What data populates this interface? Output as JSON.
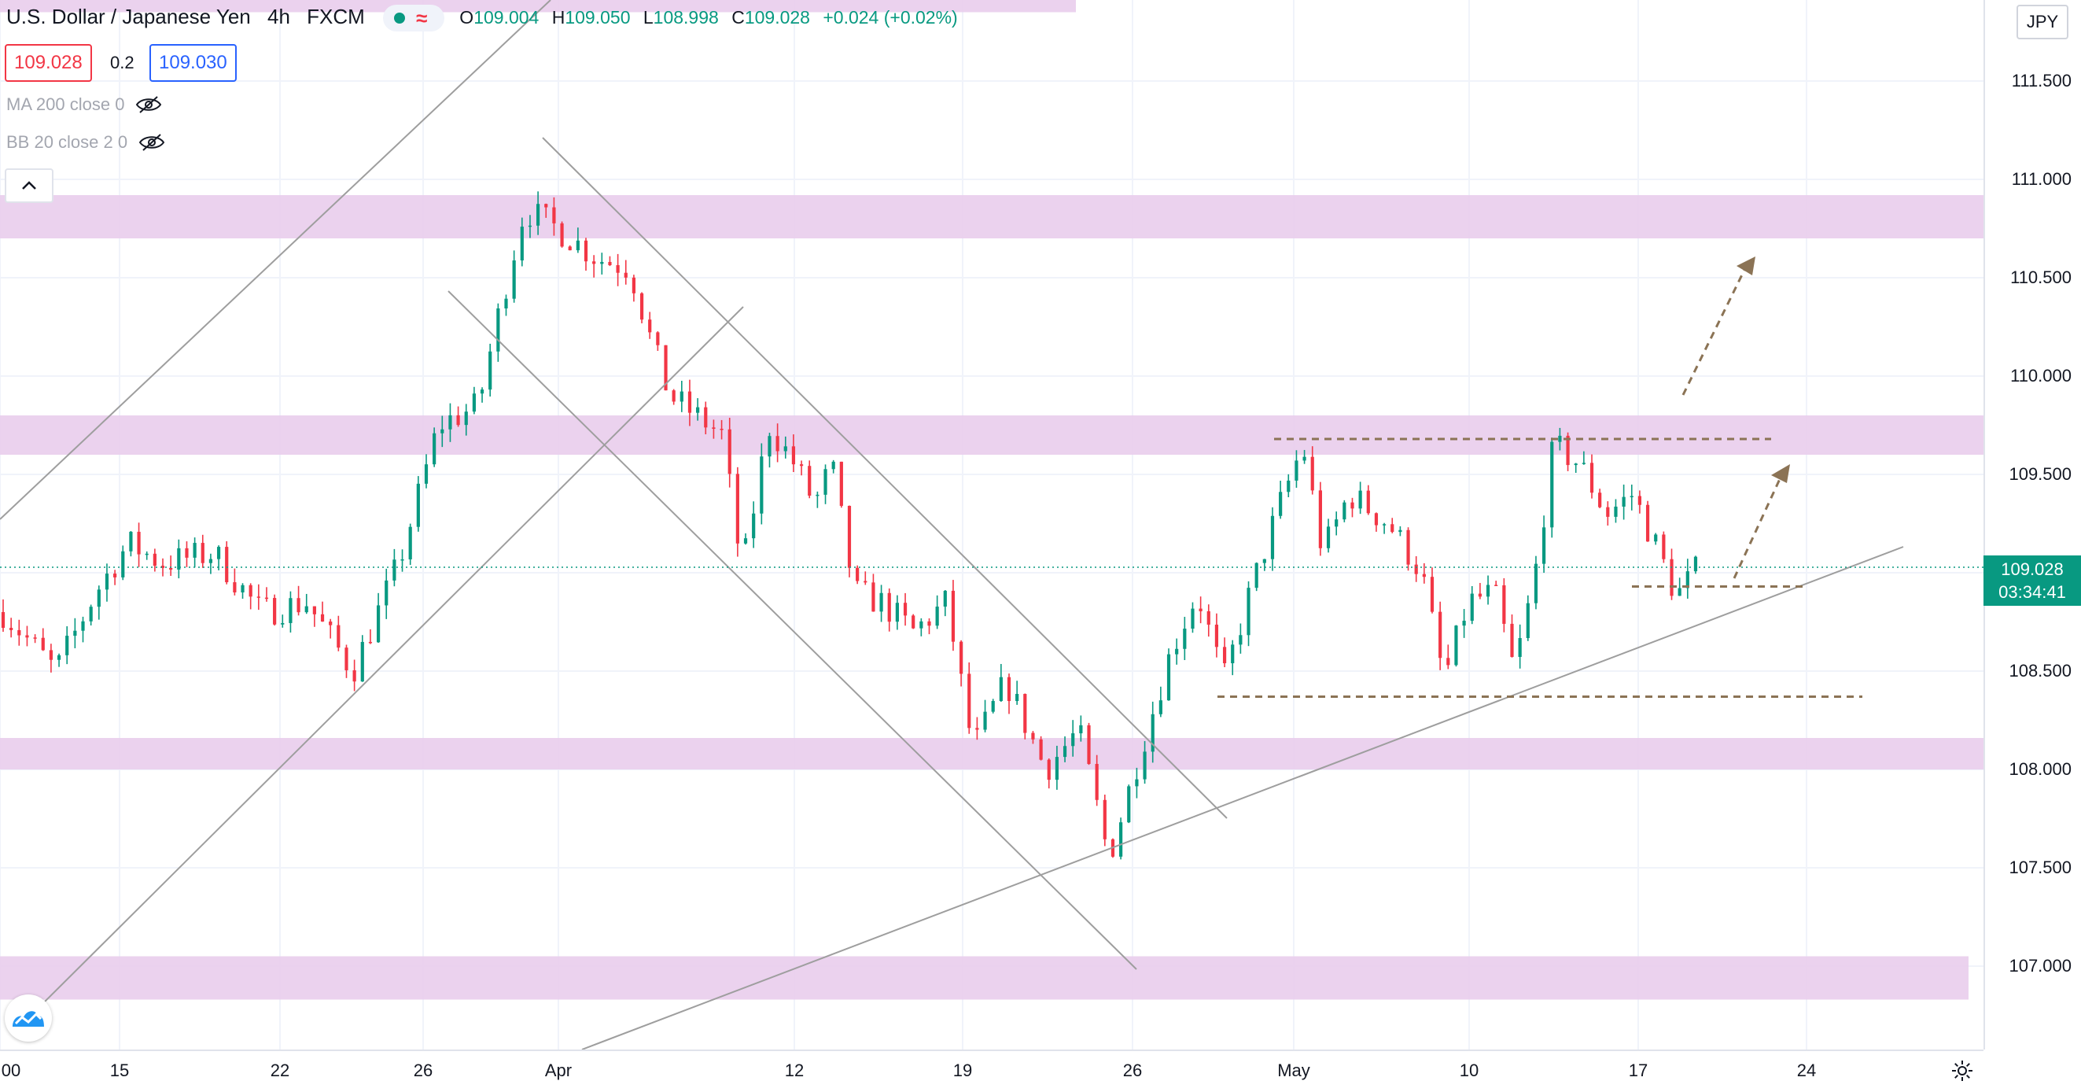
{
  "header": {
    "symbol_title": "U.S. Dollar / Japanese Yen",
    "interval": "4h",
    "exchange": "FXCM",
    "ohlc": {
      "open_label": "O",
      "open": "109.004",
      "high_label": "H",
      "high": "109.050",
      "low_label": "L",
      "low": "108.998",
      "close_label": "C",
      "close": "109.028",
      "change": "+0.024 (+0.02%)"
    },
    "bid": "109.028",
    "spread": "0.2",
    "ask": "109.030"
  },
  "indicators": [
    {
      "label": "MA 200 close 0",
      "icon": "eye-off-icon"
    },
    {
      "label": "BB 20 close 2 0",
      "icon": "eye-off-icon"
    }
  ],
  "currency": "JPY",
  "last_price": {
    "value": "109.028",
    "countdown": "03:34:41",
    "color": "#089981"
  },
  "colors": {
    "up": "#089981",
    "down": "#f23645",
    "zone": "#e9cdec",
    "trendline": "#9e9e9e",
    "dashed": "#8b7355"
  },
  "chart_data": {
    "type": "candlestick",
    "symbol": "USDJPY",
    "ylim": [
      106.6,
      111.9
    ],
    "y_ticks": [
      "111.500",
      "111.000",
      "110.500",
      "110.000",
      "109.500",
      "109.000",
      "108.500",
      "108.000",
      "107.500",
      "107.000"
    ],
    "y_tick_values": [
      111.5,
      111.0,
      110.5,
      110.0,
      109.5,
      109.0,
      108.5,
      108.0,
      107.5,
      107.0
    ],
    "x_ticks": [
      "00",
      "15",
      "22",
      "26",
      "Apr",
      "12",
      "19",
      "26",
      "May",
      "10",
      "17",
      "24"
    ],
    "zones": [
      {
        "from": 111.85,
        "to": 111.95
      },
      {
        "from": 110.7,
        "to": 110.92
      },
      {
        "from": 109.6,
        "to": 109.8
      },
      {
        "from": 108.0,
        "to": 108.16
      },
      {
        "from": 106.83,
        "to": 107.05
      }
    ],
    "horizontal_levels": [
      109.68,
      108.93,
      108.37
    ],
    "last_price": 109.028,
    "price_path": [
      {
        "t": 0,
        "p": 108.8
      },
      {
        "t": 40,
        "p": 108.5
      },
      {
        "t": 70,
        "p": 108.9
      },
      {
        "t": 95,
        "p": 109.15
      },
      {
        "t": 120,
        "p": 109.05
      },
      {
        "t": 160,
        "p": 109.1
      },
      {
        "t": 195,
        "p": 108.8
      },
      {
        "t": 230,
        "p": 108.85
      },
      {
        "t": 265,
        "p": 108.5
      },
      {
        "t": 300,
        "p": 109.05
      },
      {
        "t": 330,
        "p": 109.75
      },
      {
        "t": 360,
        "p": 109.85
      },
      {
        "t": 375,
        "p": 110.3
      },
      {
        "t": 395,
        "p": 110.85
      },
      {
        "t": 420,
        "p": 110.75
      },
      {
        "t": 450,
        "p": 110.6
      },
      {
        "t": 475,
        "p": 110.55
      },
      {
        "t": 490,
        "p": 110.2
      },
      {
        "t": 505,
        "p": 109.9
      },
      {
        "t": 525,
        "p": 109.8
      },
      {
        "t": 545,
        "p": 109.7
      },
      {
        "t": 560,
        "p": 109.0
      },
      {
        "t": 580,
        "p": 109.75
      },
      {
        "t": 600,
        "p": 109.55
      },
      {
        "t": 615,
        "p": 109.35
      },
      {
        "t": 628,
        "p": 109.55
      },
      {
        "t": 645,
        "p": 108.9
      },
      {
        "t": 665,
        "p": 108.85
      },
      {
        "t": 690,
        "p": 108.7
      },
      {
        "t": 715,
        "p": 108.85
      },
      {
        "t": 735,
        "p": 108.1
      },
      {
        "t": 760,
        "p": 108.45
      },
      {
        "t": 790,
        "p": 108.0
      },
      {
        "t": 815,
        "p": 108.2
      },
      {
        "t": 838,
        "p": 107.55
      },
      {
        "t": 860,
        "p": 108.05
      },
      {
        "t": 885,
        "p": 108.6
      },
      {
        "t": 905,
        "p": 108.9
      },
      {
        "t": 925,
        "p": 108.45
      },
      {
        "t": 945,
        "p": 108.9
      },
      {
        "t": 965,
        "p": 109.3
      },
      {
        "t": 985,
        "p": 109.65
      },
      {
        "t": 1000,
        "p": 109.1
      },
      {
        "t": 1020,
        "p": 109.4
      },
      {
        "t": 1050,
        "p": 109.25
      },
      {
        "t": 1075,
        "p": 109.0
      },
      {
        "t": 1092,
        "p": 108.45
      },
      {
        "t": 1110,
        "p": 108.85
      },
      {
        "t": 1130,
        "p": 108.9
      },
      {
        "t": 1145,
        "p": 108.5
      },
      {
        "t": 1160,
        "p": 108.95
      },
      {
        "t": 1175,
        "p": 109.65
      },
      {
        "t": 1195,
        "p": 109.55
      },
      {
        "t": 1215,
        "p": 109.3
      },
      {
        "t": 1235,
        "p": 109.4
      },
      {
        "t": 1255,
        "p": 109.1
      },
      {
        "t": 1268,
        "p": 108.88
      },
      {
        "t": 1285,
        "p": 109.03
      }
    ]
  }
}
